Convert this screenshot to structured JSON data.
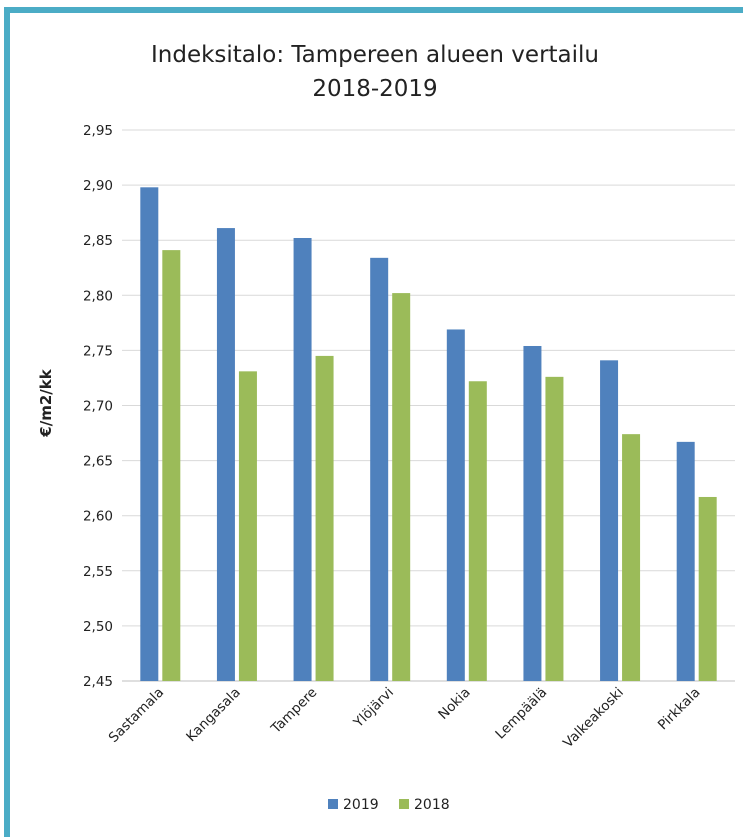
{
  "chart_data": {
    "type": "bar",
    "title": "Indeksitalo: Tampereen alueen vertailu",
    "subtitle": "2018-2019",
    "xlabel": "",
    "ylabel": "€/m2/kk",
    "ylim": [
      2.45,
      2.95
    ],
    "ytick_step": 0.05,
    "yticks": [
      "2,45",
      "2,50",
      "2,55",
      "2,60",
      "2,65",
      "2,70",
      "2,75",
      "2,80",
      "2,85",
      "2,90",
      "2,95"
    ],
    "categories": [
      "Sastamala",
      "Kangasala",
      "Tampere",
      "Ylöjärvi",
      "Nokia",
      "Lempäälä",
      "Valkeakoski",
      "Pirkkala"
    ],
    "series": [
      {
        "name": "2019",
        "color": "#4f81bd",
        "values": [
          2.898,
          2.861,
          2.852,
          2.834,
          2.769,
          2.754,
          2.741,
          2.667
        ]
      },
      {
        "name": "2018",
        "color": "#9bbb59",
        "values": [
          2.841,
          2.731,
          2.745,
          2.802,
          2.722,
          2.726,
          2.674,
          2.617
        ]
      }
    ],
    "grid": true,
    "legend_position": "bottom"
  },
  "colors": {
    "frame_border": "#4bacc6",
    "gridline": "#d9d9d9",
    "axis_line": "#bfbfbf"
  }
}
